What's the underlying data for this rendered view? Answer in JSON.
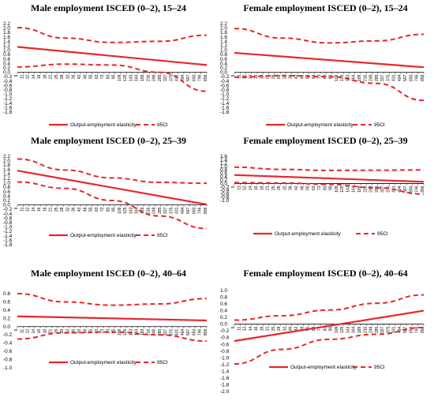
{
  "chart_data": [
    {
      "type": "line",
      "title": "Male employment ISCED (0–2), 15–24",
      "yticks": [
        "2.2",
        "2.0",
        "1.8",
        "1.6",
        "1.4",
        "1.2",
        "1.0",
        "0.8",
        "0.6",
        "0.4",
        "0.2",
        "0.0",
        "-0.2",
        "-0.4",
        "-0.6",
        "-0.8",
        "-1.0",
        "-1.2",
        "-1.4",
        "-1.6",
        "-1.8"
      ],
      "ylim": [
        -1.8,
        2.2
      ],
      "xticks": [
        "9",
        "11",
        "12",
        "14",
        "16",
        "18",
        "21",
        "25",
        "28",
        "32",
        "36",
        "42",
        "48",
        "55",
        "63",
        "73",
        "83",
        "95",
        "109",
        "125",
        "143",
        "164",
        "189",
        "216",
        "248",
        "285",
        "327",
        "375",
        "431",
        "494",
        "567",
        "650",
        "746",
        "856"
      ],
      "series": [
        {
          "name": "Output-employment elasticity",
          "style": "solid",
          "values": [
            1.15,
            0.33
          ]
        },
        {
          "name": "95CI",
          "style": "dashed",
          "values": [
            2.02,
            1.55,
            1.35,
            1.4,
            1.68
          ]
        },
        {
          "name": "95CI",
          "style": "dashed",
          "values": [
            0.24,
            0.37,
            0.33,
            0.0,
            -0.86
          ]
        }
      ]
    },
    {
      "type": "line",
      "title": "Female employment ISCED (0–2), 15–24",
      "yticks": [
        "2.2",
        "2.0",
        "1.8",
        "1.6",
        "1.4",
        "1.2",
        "1.0",
        "0.8",
        "0.6",
        "0.4",
        "0.2",
        "0.0",
        "-0.2",
        "-0.4",
        "-0.6",
        "-0.8",
        "-1.0",
        "-1.2",
        "-1.4",
        "-1.6",
        "-1.8"
      ],
      "ylim": [
        -1.8,
        2.2
      ],
      "xticks": [
        "9",
        "11",
        "12",
        "14",
        "16",
        "18",
        "21",
        "25",
        "28",
        "32",
        "36",
        "42",
        "48",
        "55",
        "63",
        "73",
        "83",
        "95",
        "109",
        "125",
        "143",
        "164",
        "189",
        "216",
        "248",
        "285",
        "327",
        "375",
        "431",
        "494",
        "567",
        "650",
        "746",
        "856"
      ],
      "series": [
        {
          "name": "Output-employment elasticity",
          "style": "solid",
          "values": [
            0.88,
            0.23
          ]
        },
        {
          "name": "95CI",
          "style": "dashed",
          "values": [
            1.98,
            1.55,
            1.33,
            1.42,
            1.72
          ]
        },
        {
          "name": "95CI",
          "style": "dashed",
          "values": [
            -0.22,
            -0.15,
            -0.2,
            -0.5,
            -1.27
          ]
        }
      ]
    },
    {
      "type": "line",
      "title": "Male employment ISCED (0–2), 25–39",
      "yticks": [
        "2.2",
        "2.0",
        "1.8",
        "1.6",
        "1.4",
        "1.2",
        "1.0",
        "0.8",
        "0.6",
        "0.4",
        "0.2",
        "0.0",
        "-0.2",
        "-0.4",
        "-0.6",
        "-0.8",
        "-1.0",
        "-1.2",
        "-1.4",
        "-1.6",
        "-1.8"
      ],
      "ylim": [
        -1.8,
        2.2
      ],
      "xticks": [
        "9",
        "11",
        "12",
        "14",
        "16",
        "18",
        "21",
        "25",
        "28",
        "32",
        "36",
        "42",
        "48",
        "55",
        "63",
        "73",
        "83",
        "95",
        "109",
        "125",
        "143",
        "164",
        "189",
        "216",
        "248",
        "285",
        "327",
        "375",
        "431",
        "494",
        "567",
        "650",
        "746",
        "856"
      ],
      "series": [
        {
          "name": "Output-employment elasticity",
          "style": "solid",
          "values": [
            1.55,
            0.02
          ]
        },
        {
          "name": "95CI",
          "style": "dashed",
          "values": [
            2.08,
            1.58,
            1.22,
            1.02,
            0.98
          ]
        },
        {
          "name": "95CI",
          "style": "dashed",
          "values": [
            1.04,
            0.75,
            0.2,
            -0.5,
            -1.07
          ]
        }
      ]
    },
    {
      "type": "line",
      "title": "Female employment ISCED (0–2), 25–39",
      "yticks": [
        "1.6",
        "1.4",
        "1.2",
        "1.0",
        "0.8",
        "0.6",
        "0.4",
        "0.2",
        "0.0",
        "-0.2",
        "-0.4",
        "-0.6",
        "-0.8",
        "-1.0"
      ],
      "ylim": [
        -1.0,
        1.6
      ],
      "xticks": [
        "9",
        "11",
        "12",
        "14",
        "16",
        "18",
        "21",
        "25",
        "28",
        "32",
        "36",
        "42",
        "48",
        "55",
        "63",
        "73",
        "83",
        "95",
        "109",
        "125",
        "143",
        "164",
        "189",
        "216",
        "248",
        "285",
        "327",
        "375",
        "431",
        "494",
        "567",
        "650",
        "746",
        "856"
      ],
      "series": [
        {
          "name": "Output-employment elasticity",
          "style": "solid",
          "values": [
            0.5,
            0.1
          ]
        },
        {
          "name": "95CI",
          "style": "dashed",
          "values": [
            0.96,
            0.83,
            0.77,
            0.78,
            0.8
          ]
        },
        {
          "name": "95CI",
          "style": "dashed",
          "values": [
            0.05,
            0.03,
            -0.05,
            -0.25,
            -0.62
          ]
        }
      ]
    },
    {
      "type": "line",
      "title": "Male employment ISCED (0–2), 40–64",
      "yticks": [
        "0.8",
        "0.6",
        "0.4",
        "0.2",
        "0.0",
        "-0.2",
        "-0.4",
        "-0.6",
        "-0.8",
        "-1.0"
      ],
      "ylim": [
        -1.0,
        0.8
      ],
      "xticks": [
        "9",
        "11",
        "12",
        "14",
        "16",
        "18",
        "21",
        "25",
        "28",
        "32",
        "36",
        "42",
        "48",
        "55",
        "63",
        "73",
        "83",
        "95",
        "109",
        "125",
        "143",
        "164",
        "189",
        "216",
        "248",
        "285",
        "327",
        "375",
        "431",
        "494",
        "567",
        "650",
        "746",
        "856"
      ],
      "series": [
        {
          "name": "Output-employment elasticity",
          "style": "solid",
          "values": [
            0.25,
            0.15
          ]
        },
        {
          "name": "95CI",
          "style": "dashed",
          "values": [
            0.8,
            0.6,
            0.52,
            0.55,
            0.68
          ]
        },
        {
          "name": "95CI",
          "style": "dashed",
          "values": [
            -0.3,
            -0.15,
            -0.13,
            -0.2,
            -0.35
          ]
        }
      ]
    },
    {
      "type": "line",
      "title": "Female employment ISCED (0–2), 40–64",
      "yticks": [
        "1.0",
        "0.8",
        "0.6",
        "0.4",
        "0.2",
        "0.0",
        "-0.2",
        "-0.4",
        "-0.6",
        "-0.8",
        "-1.0",
        "-1.2",
        "-1.4",
        "-1.6",
        "-1.8",
        "-2.0"
      ],
      "ylim": [
        -2.0,
        1.0
      ],
      "xticks": [
        "9",
        "11",
        "12",
        "14",
        "16",
        "18",
        "21",
        "25",
        "28",
        "32",
        "36",
        "42",
        "48",
        "55",
        "63",
        "73",
        "83",
        "95",
        "109",
        "125",
        "143",
        "164",
        "189",
        "216",
        "248",
        "285",
        "327",
        "375",
        "431",
        "494",
        "567",
        "650",
        "746",
        "856"
      ],
      "series": [
        {
          "name": "Output-employment elasticity",
          "style": "solid",
          "values": [
            -0.5,
            0.4
          ]
        },
        {
          "name": "95CI",
          "style": "dashed",
          "values": [
            0.12,
            0.25,
            0.42,
            0.62,
            0.87
          ]
        },
        {
          "name": "95CI",
          "style": "dashed",
          "values": [
            -1.18,
            -0.75,
            -0.45,
            -0.3,
            -0.1
          ]
        }
      ]
    }
  ]
}
